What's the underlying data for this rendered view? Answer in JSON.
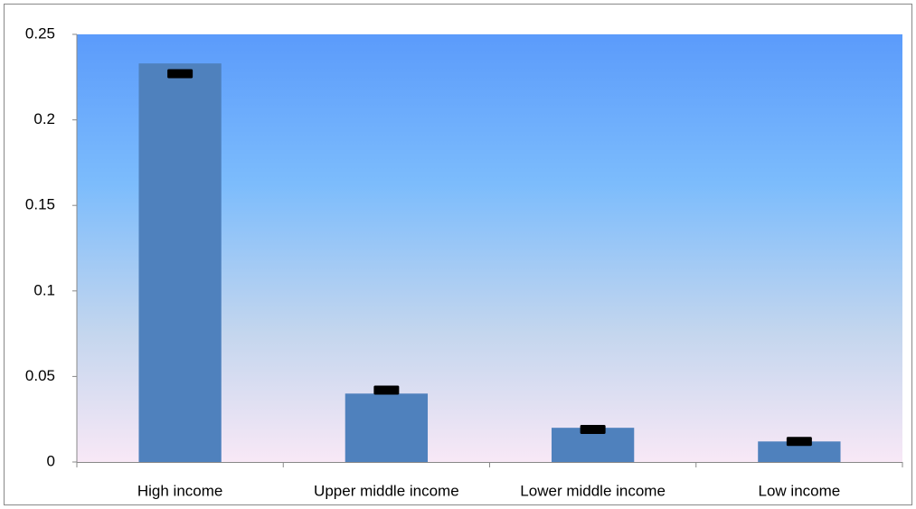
{
  "chart_data": {
    "type": "bar",
    "categories": [
      "High income",
      "Upper middle income",
      "Lower middle income",
      "Low income"
    ],
    "series": [
      {
        "color": "#4f81bd",
        "mark": "bar",
        "values": [
          0.233,
          0.04,
          0.02,
          0.012
        ]
      },
      {
        "color": "#000000",
        "mark": "dash",
        "values": [
          0.227,
          0.042,
          0.019,
          0.012
        ]
      }
    ],
    "ylim": [
      0,
      0.25
    ],
    "yticks": [
      0,
      0.05,
      0.1,
      0.15,
      0.2,
      0.25
    ],
    "grid": false
  }
}
